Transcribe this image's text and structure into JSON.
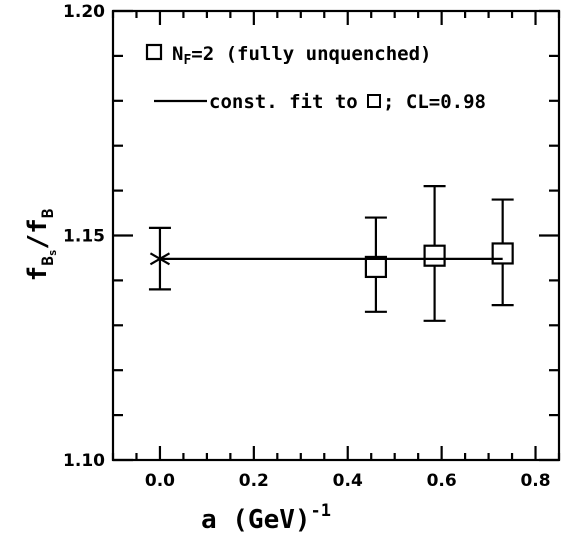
{
  "chart_data": {
    "type": "scatter",
    "xlabel": {
      "main": "a (GeV)",
      "sup": "-1"
    },
    "ylabel": {
      "main": "f",
      "sub": "B",
      "subsub": "s",
      "rest": "/f",
      "rest_sub": "B"
    },
    "xlim": [
      -0.1,
      0.85
    ],
    "ylim": [
      1.1,
      1.2
    ],
    "x_ticks": [
      0.0,
      0.2,
      0.4,
      0.6,
      0.8
    ],
    "x_tick_labels": [
      "0.0",
      "0.2",
      "0.4",
      "0.6",
      "0.8"
    ],
    "y_ticks": [
      1.1,
      1.15,
      1.2
    ],
    "y_tick_labels": [
      "1.10",
      "1.15",
      "1.20"
    ],
    "series": [
      {
        "name": "N_F=2 (fully unquenched)",
        "marker": "open-square",
        "x": [
          0.46,
          0.585,
          0.73
        ],
        "y": [
          1.143,
          1.1455,
          1.146
        ],
        "yerr_low": [
          1.133,
          1.131,
          1.1345
        ],
        "yerr_high": [
          1.154,
          1.161,
          1.158
        ]
      }
    ],
    "fit": {
      "name": "const. fit to □; CL=0.98",
      "value": 1.1448,
      "x_range": [
        0.0,
        0.73
      ]
    },
    "extrapolated_point": {
      "marker": "star",
      "x": 0.0,
      "y": 1.1448,
      "yerr_low": 1.138,
      "yerr_high": 1.1517
    },
    "legend": {
      "placement": "top-left",
      "entry1": {
        "main": "N",
        "sub": "F",
        "rest": "=2 (fully unquenched)"
      },
      "entry2": {
        "pre": "const. fit to ",
        "post": "; CL=0.98"
      }
    },
    "grid": false
  }
}
